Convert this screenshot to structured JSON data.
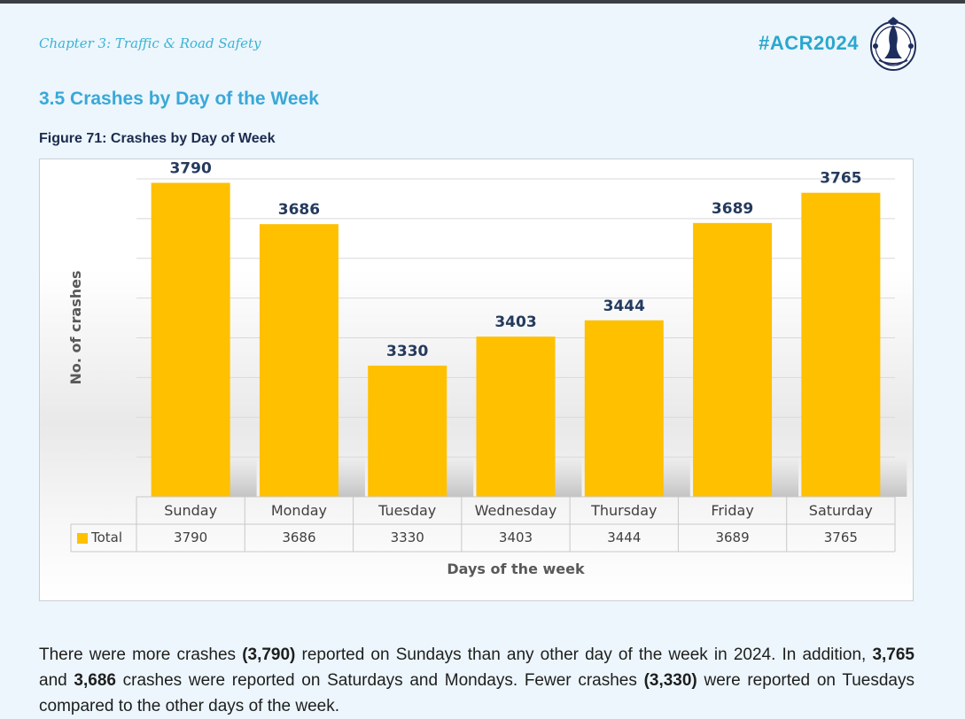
{
  "header": {
    "chapter": "Chapter 3: Traffic & Road Safety",
    "hashtag": "#ACR2024",
    "logo": "coat-of-arms-seal-icon"
  },
  "section_title": "3.5 Crashes by Day of the Week",
  "figure_title": "Figure 71: Crashes by Day of Week",
  "chart_data": {
    "type": "bar",
    "categories": [
      "Sunday",
      "Monday",
      "Tuesday",
      "Wednesday",
      "Thursday",
      "Friday",
      "Saturday"
    ],
    "series": [
      {
        "name": "Total",
        "values": [
          3790,
          3686,
          3330,
          3403,
          3444,
          3689,
          3765
        ],
        "color": "#ffc000"
      }
    ],
    "data_labels": [
      "3790",
      "3686",
      "3330",
      "3403",
      "3444",
      "3689",
      "3765"
    ],
    "table_values": [
      "3790",
      "3686",
      "3330",
      "3403",
      "3444",
      "3689",
      "3765"
    ],
    "legend_label": "Total",
    "xlabel": "Days of the week",
    "ylabel": "No. of crashes",
    "ylim": [
      3000,
      3800
    ],
    "grid": true,
    "data_table": true
  },
  "paragraph": {
    "t1": "There were more crashes ",
    "b1": "(3,790)",
    "t2": " reported on Sundays than any other day of the week in 2024. In addition, ",
    "b2": "3,765",
    "t3": " and ",
    "b3": "3,686",
    "t4": " crashes were reported on Saturdays and Mondays.  Fewer crashes ",
    "b4": "(3,330)",
    "t5": " were reported on Tuesdays compared to the other days of the week."
  }
}
